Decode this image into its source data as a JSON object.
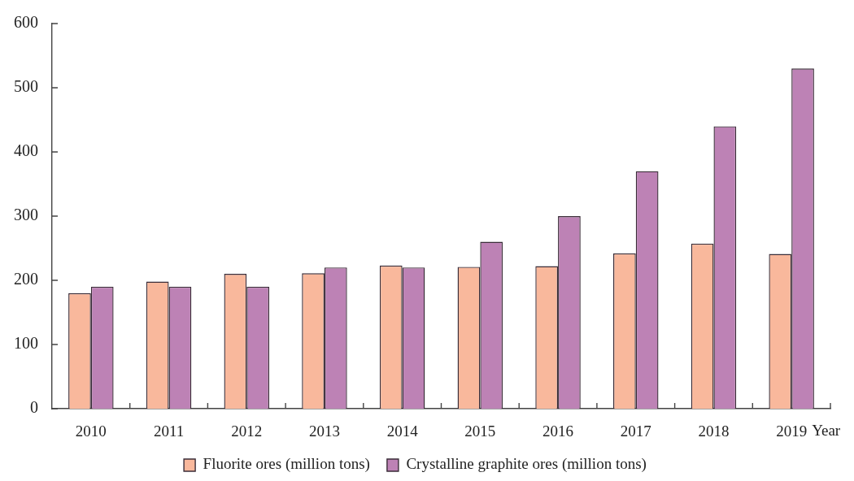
{
  "chart_data": {
    "type": "bar",
    "xlabel": "Year",
    "categories": [
      "2010",
      "2011",
      "2012",
      "2013",
      "2014",
      "2015",
      "2016",
      "2017",
      "2018",
      "2019"
    ],
    "series": [
      {
        "name": "Fluorite ores (million tons)",
        "color": "#f9b89c",
        "values": [
          180,
          198,
          210,
          211,
          223,
          221,
          222,
          242,
          257,
          241
        ]
      },
      {
        "name": "Crystalline graphite ores (million tons)",
        "color": "#bd82b5",
        "values": [
          190,
          190,
          190,
          220,
          220,
          260,
          300,
          370,
          440,
          530
        ]
      }
    ],
    "ylim": [
      0,
      600
    ],
    "yticks": [
      0,
      100,
      200,
      300,
      400,
      500,
      600
    ],
    "grid": false,
    "legend": "bottom"
  }
}
